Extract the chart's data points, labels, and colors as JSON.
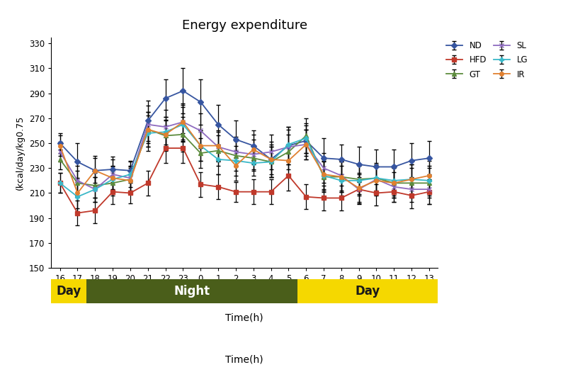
{
  "title": "Energy expenditure",
  "xlabel": "Time(h)",
  "ylabel": "(kcal/day/kg0.75",
  "x_labels": [
    "16",
    "17",
    "18",
    "19",
    "20",
    "21",
    "22",
    "23",
    "0",
    "1",
    "2",
    "3",
    "4",
    "5",
    "6",
    "7",
    "8",
    "9",
    "10",
    "11",
    "12",
    "13"
  ],
  "ylim": [
    150,
    335
  ],
  "yticks": [
    150,
    170,
    190,
    210,
    230,
    250,
    270,
    290,
    310,
    330
  ],
  "series": {
    "ND": {
      "color": "#3655a0",
      "marker": "D",
      "markersize": 4,
      "values": [
        250,
        235,
        228,
        229,
        228,
        268,
        286,
        292,
        283,
        265,
        253,
        248,
        237,
        248,
        252,
        238,
        237,
        233,
        231,
        231,
        236,
        238
      ],
      "errors": [
        8,
        15,
        12,
        10,
        8,
        16,
        15,
        18,
        18,
        16,
        15,
        12,
        14,
        15,
        12,
        16,
        12,
        14,
        14,
        14,
        14,
        14
      ]
    },
    "HFD": {
      "color": "#c0392b",
      "marker": "s",
      "markersize": 4,
      "values": [
        218,
        194,
        196,
        211,
        210,
        218,
        246,
        246,
        217,
        215,
        211,
        211,
        211,
        224,
        207,
        206,
        206,
        213,
        210,
        211,
        208,
        211
      ],
      "errors": [
        8,
        10,
        10,
        10,
        8,
        10,
        12,
        12,
        10,
        10,
        8,
        10,
        10,
        12,
        10,
        10,
        10,
        10,
        10,
        8,
        10,
        10
      ]
    },
    "GT": {
      "color": "#5d8c3e",
      "marker": "^",
      "markersize": 4,
      "values": [
        237,
        218,
        216,
        218,
        221,
        261,
        256,
        257,
        242,
        244,
        240,
        238,
        235,
        243,
        256,
        223,
        223,
        221,
        222,
        218,
        218,
        218
      ],
      "errors": [
        8,
        10,
        10,
        10,
        10,
        14,
        12,
        14,
        12,
        12,
        12,
        10,
        12,
        14,
        14,
        12,
        12,
        12,
        10,
        12,
        12,
        12
      ]
    },
    "SL": {
      "color": "#8e6bbf",
      "marker": "x",
      "markersize": 4,
      "values": [
        243,
        220,
        213,
        225,
        222,
        265,
        263,
        267,
        260,
        247,
        243,
        241,
        243,
        247,
        249,
        230,
        224,
        213,
        221,
        215,
        213,
        213
      ],
      "errors": [
        8,
        12,
        10,
        12,
        10,
        15,
        14,
        14,
        14,
        12,
        12,
        12,
        14,
        14,
        12,
        12,
        12,
        12,
        12,
        12,
        10,
        12
      ]
    },
    "LG": {
      "color": "#3ab8c8",
      "marker": "P",
      "markersize": 4,
      "values": [
        218,
        207,
        213,
        221,
        225,
        258,
        259,
        265,
        248,
        237,
        236,
        234,
        235,
        249,
        254,
        224,
        220,
        220,
        222,
        220,
        221,
        220
      ],
      "errors": [
        8,
        12,
        10,
        10,
        10,
        14,
        12,
        14,
        12,
        12,
        12,
        10,
        12,
        14,
        12,
        12,
        12,
        12,
        12,
        12,
        12,
        12
      ]
    },
    "IR": {
      "color": "#e08030",
      "marker": "o",
      "markersize": 4,
      "values": [
        248,
        210,
        228,
        222,
        220,
        261,
        257,
        267,
        248,
        248,
        232,
        245,
        237,
        236,
        249,
        225,
        223,
        214,
        220,
        218,
        221,
        224
      ],
      "errors": [
        8,
        12,
        10,
        10,
        10,
        14,
        12,
        15,
        12,
        12,
        12,
        12,
        12,
        12,
        12,
        12,
        12,
        12,
        12,
        12,
        12,
        12
      ]
    }
  },
  "day_color": "#f5d800",
  "night_color": "#4a5e1a",
  "day_text_color": "#1a1a1a",
  "night_text_color": "#ffffff",
  "background_color": "#ffffff",
  "legend_order": [
    "ND",
    "HFD",
    "GT",
    "SL",
    "LG",
    "IR"
  ]
}
